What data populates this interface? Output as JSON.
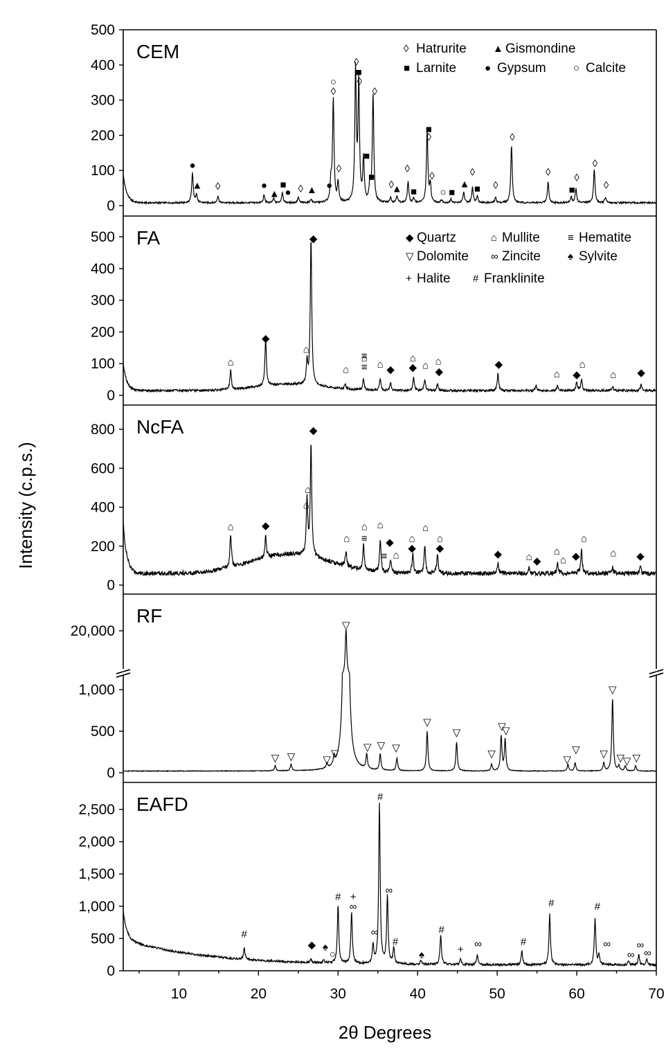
{
  "chart_data": {
    "type": "line",
    "x_axis": {
      "label": "2θ Degrees",
      "range": [
        3,
        70
      ],
      "ticks": [
        10,
        20,
        30,
        40,
        50,
        60,
        70
      ]
    },
    "y_axis_label": "Intensity (c.p.s.)",
    "panels": [
      {
        "name": "CEM",
        "y_range": [
          0,
          500
        ],
        "y_ticks": [
          "0",
          "100",
          "200",
          "300",
          "400",
          "500"
        ],
        "legend": [
          {
            "symbol": "◊",
            "name": "Hatrurite"
          },
          {
            "symbol": "▲",
            "name": "Gismondine"
          },
          {
            "symbol": "■",
            "name": "Larnite"
          },
          {
            "symbol": "●",
            "name": "Gypsum"
          },
          {
            "symbol": "○",
            "name": "Calcite"
          }
        ],
        "baseline": 8,
        "low_angle_rise": 80,
        "peaks": [
          [
            11.7,
            85
          ],
          [
            12.2,
            25
          ],
          [
            14.9,
            20
          ],
          [
            20.7,
            22
          ],
          [
            21.9,
            12
          ],
          [
            23.0,
            30
          ],
          [
            25.0,
            15
          ],
          [
            26.6,
            10
          ],
          [
            29.1,
            55
          ],
          [
            29.4,
            295
          ],
          [
            30.0,
            55
          ],
          [
            32.2,
            375
          ],
          [
            32.6,
            335
          ],
          [
            33.2,
            120
          ],
          [
            34.0,
            50
          ],
          [
            34.4,
            305
          ],
          [
            36.6,
            15
          ],
          [
            37.4,
            20
          ],
          [
            38.8,
            60
          ],
          [
            39.5,
            12
          ],
          [
            41.2,
            205
          ],
          [
            41.6,
            50
          ],
          [
            43.0,
            8
          ],
          [
            44.2,
            10
          ],
          [
            45.8,
            30
          ],
          [
            46.9,
            45
          ],
          [
            47.5,
            20
          ],
          [
            49.8,
            15
          ],
          [
            51.8,
            165
          ],
          [
            56.4,
            60
          ],
          [
            59.3,
            18
          ],
          [
            59.9,
            40
          ],
          [
            62.2,
            95
          ],
          [
            63.6,
            15
          ]
        ],
        "markers": [
          [
            11.7,
            115,
            "●"
          ],
          [
            12.3,
            58,
            "▲"
          ],
          [
            14.9,
            55,
            "◊"
          ],
          [
            20.7,
            58,
            "●"
          ],
          [
            22.0,
            34,
            "▲"
          ],
          [
            23.1,
            60,
            "■"
          ],
          [
            23.7,
            38,
            "●"
          ],
          [
            25.3,
            48,
            "◊"
          ],
          [
            26.7,
            45,
            "▲"
          ],
          [
            28.9,
            58,
            "●"
          ],
          [
            29.4,
            325,
            "◊"
          ],
          [
            29.4,
            352,
            "○"
          ],
          [
            30.1,
            105,
            "◊"
          ],
          [
            32.3,
            408,
            "◊"
          ],
          [
            32.6,
            380,
            "■"
          ],
          [
            32.7,
            353,
            "◊"
          ],
          [
            33.6,
            142,
            "■"
          ],
          [
            34.2,
            82,
            "■"
          ],
          [
            34.6,
            325,
            "◊"
          ],
          [
            36.7,
            60,
            "◊"
          ],
          [
            37.4,
            48,
            "▲"
          ],
          [
            38.7,
            105,
            "◊"
          ],
          [
            39.5,
            40,
            "■"
          ],
          [
            41.4,
            218,
            "■"
          ],
          [
            41.4,
            195,
            "◊"
          ],
          [
            41.8,
            85,
            "◊"
          ],
          [
            43.2,
            38,
            "○"
          ],
          [
            44.3,
            38,
            "■"
          ],
          [
            45.9,
            62,
            "▲"
          ],
          [
            46.9,
            95,
            "◊"
          ],
          [
            47.5,
            48,
            "■"
          ],
          [
            49.8,
            58,
            "◊"
          ],
          [
            51.9,
            195,
            "◊"
          ],
          [
            56.4,
            95,
            "◊"
          ],
          [
            59.4,
            45,
            "■"
          ],
          [
            60.0,
            80,
            "◊"
          ],
          [
            62.3,
            120,
            "◊"
          ],
          [
            63.7,
            58,
            "◊"
          ]
        ]
      },
      {
        "name": "FA",
        "y_range": [
          0,
          500
        ],
        "y_ticks": [
          "0",
          "100",
          "200",
          "300",
          "400",
          "500"
        ],
        "legend": [
          {
            "symbol": "◆",
            "name": "Quartz"
          },
          {
            "symbol": "⌂",
            "name": "Mullite"
          },
          {
            "symbol": "≡",
            "name": "Hematite"
          },
          {
            "symbol": "▽",
            "name": "Dolomite"
          },
          {
            "symbol": "∞",
            "name": "Zincite"
          },
          {
            "symbol": "♠",
            "name": "Sylvite"
          },
          {
            "symbol": "+",
            "name": "Halite"
          },
          {
            "symbol": "#",
            "name": "Franklinite"
          }
        ],
        "baseline": 15,
        "low_angle_rise": 85,
        "hump": {
          "center": 24,
          "width": 6,
          "height": 20
        },
        "peaks": [
          [
            16.5,
            60
          ],
          [
            20.9,
            150
          ],
          [
            26.1,
            70
          ],
          [
            26.6,
            465
          ],
          [
            30.9,
            15
          ],
          [
            33.2,
            35
          ],
          [
            35.3,
            35
          ],
          [
            36.6,
            25
          ],
          [
            39.5,
            40
          ],
          [
            40.9,
            35
          ],
          [
            42.5,
            20
          ],
          [
            50.1,
            55
          ],
          [
            54.9,
            15
          ],
          [
            57.6,
            15
          ],
          [
            60.0,
            28
          ],
          [
            60.6,
            35
          ],
          [
            64.5,
            12
          ],
          [
            68.1,
            20
          ]
        ],
        "markers": [
          [
            16.5,
            105,
            "⌂"
          ],
          [
            20.9,
            180,
            "◆"
          ],
          [
            26.0,
            145,
            "⌂"
          ],
          [
            26.9,
            495,
            "◆"
          ],
          [
            31.0,
            82,
            "⌂"
          ],
          [
            33.3,
            118,
            "⌂"
          ],
          [
            33.3,
            125,
            "≡"
          ],
          [
            33.3,
            90,
            "≡"
          ],
          [
            35.3,
            98,
            "⌂"
          ],
          [
            36.6,
            82,
            "◆"
          ],
          [
            39.4,
            88,
            "◆"
          ],
          [
            39.4,
            118,
            "⌂"
          ],
          [
            41.0,
            95,
            "⌂"
          ],
          [
            42.6,
            108,
            "⌂"
          ],
          [
            42.7,
            75,
            "◆"
          ],
          [
            50.2,
            98,
            "◆"
          ],
          [
            57.5,
            68,
            "⌂"
          ],
          [
            60.0,
            65,
            "◆"
          ],
          [
            60.7,
            98,
            "⌂"
          ],
          [
            64.6,
            65,
            "⌂"
          ],
          [
            68.1,
            72,
            "◆"
          ]
        ]
      },
      {
        "name": "NcFA",
        "y_range": [
          0,
          800
        ],
        "y_ticks": [
          "0",
          "200",
          "400",
          "600",
          "800"
        ],
        "baseline": 60,
        "low_angle_rise": 260,
        "hump": {
          "center": 24,
          "width": 7,
          "height": 100
        },
        "peaks": [
          [
            16.5,
            175
          ],
          [
            20.9,
            110
          ],
          [
            26.1,
            290
          ],
          [
            26.6,
            570
          ],
          [
            31.0,
            80
          ],
          [
            33.2,
            130
          ],
          [
            35.3,
            170
          ],
          [
            36.6,
            70
          ],
          [
            39.4,
            100
          ],
          [
            40.9,
            140
          ],
          [
            42.5,
            100
          ],
          [
            50.1,
            50
          ],
          [
            54.0,
            25
          ],
          [
            57.6,
            50
          ],
          [
            60.6,
            120
          ],
          [
            64.5,
            30
          ],
          [
            68.0,
            30
          ]
        ],
        "markers": [
          [
            16.5,
            300,
            "⌂"
          ],
          [
            20.9,
            305,
            "◆"
          ],
          [
            26.0,
            410,
            "⌂"
          ],
          [
            26.2,
            490,
            "⌂"
          ],
          [
            26.9,
            795,
            "◆"
          ],
          [
            31.1,
            240,
            "⌂"
          ],
          [
            33.3,
            300,
            "⌂"
          ],
          [
            33.3,
            240,
            "≡"
          ],
          [
            35.3,
            310,
            "⌂"
          ],
          [
            35.8,
            150,
            "≡"
          ],
          [
            36.5,
            220,
            "◆"
          ],
          [
            37.3,
            155,
            "⌂"
          ],
          [
            39.3,
            190,
            "◆"
          ],
          [
            39.3,
            240,
            "⌂"
          ],
          [
            41.0,
            295,
            "⌂"
          ],
          [
            42.8,
            190,
            "◆"
          ],
          [
            42.8,
            240,
            "⌂"
          ],
          [
            50.1,
            160,
            "◆"
          ],
          [
            54.0,
            145,
            "⌂"
          ],
          [
            55.0,
            125,
            "◆"
          ],
          [
            57.5,
            175,
            "⌂"
          ],
          [
            58.3,
            130,
            "⌂"
          ],
          [
            59.9,
            150,
            "◆"
          ],
          [
            60.9,
            240,
            "⌂"
          ],
          [
            64.6,
            165,
            "⌂"
          ],
          [
            68.0,
            150,
            "◆"
          ]
        ]
      },
      {
        "name": "RF",
        "y_range_lower": [
          0,
          1150
        ],
        "y_ticks_lower": [
          "0",
          "500",
          "1,000"
        ],
        "y_tick_upper": "20,000",
        "baseline": 20,
        "low_angle_rise": 0,
        "peaks": [
          [
            22.1,
            60
          ],
          [
            24.1,
            80
          ],
          [
            28.6,
            60
          ],
          [
            29.5,
            100
          ],
          [
            31.0,
            21000
          ],
          [
            33.6,
            180
          ],
          [
            35.3,
            200
          ],
          [
            37.4,
            150
          ],
          [
            41.2,
            480
          ],
          [
            44.9,
            350
          ],
          [
            49.3,
            80
          ],
          [
            50.5,
            420
          ],
          [
            51.0,
            380
          ],
          [
            58.9,
            80
          ],
          [
            59.8,
            100
          ],
          [
            63.4,
            100
          ],
          [
            64.5,
            880
          ],
          [
            65.3,
            60
          ],
          [
            66.1,
            60
          ],
          [
            67.4,
            60
          ]
        ],
        "markers": [
          [
            22.1,
            180,
            "▽"
          ],
          [
            24.1,
            195,
            "▽"
          ],
          [
            28.6,
            160,
            "▽"
          ],
          [
            29.6,
            235,
            "▽"
          ],
          [
            31.0,
            22400,
            "▽"
          ],
          [
            33.7,
            310,
            "▽"
          ],
          [
            35.4,
            330,
            "▽"
          ],
          [
            37.3,
            300,
            "▽"
          ],
          [
            41.2,
            610,
            "▽"
          ],
          [
            44.9,
            485,
            "▽"
          ],
          [
            49.3,
            230,
            "▽"
          ],
          [
            50.6,
            560,
            "▽"
          ],
          [
            51.1,
            510,
            "▽"
          ],
          [
            58.8,
            160,
            "▽"
          ],
          [
            59.9,
            280,
            "▽"
          ],
          [
            63.4,
            230,
            "▽"
          ],
          [
            64.5,
            1000,
            "▽"
          ],
          [
            65.5,
            180,
            "▽"
          ],
          [
            66.3,
            140,
            "▽"
          ],
          [
            67.5,
            180,
            "▽"
          ]
        ]
      },
      {
        "name": "EAFD",
        "y_range": [
          0,
          2800
        ],
        "y_ticks": [
          "0",
          "500",
          "1,000",
          "1,500",
          "2,000",
          "2,500"
        ],
        "baseline": 90,
        "low_angle_rise": 440,
        "decay": {
          "amplitude": 400,
          "scale": 10
        },
        "peaks": [
          [
            18.2,
            180
          ],
          [
            26.6,
            50
          ],
          [
            28.2,
            40
          ],
          [
            30.0,
            900
          ],
          [
            31.7,
            800
          ],
          [
            34.4,
            300
          ],
          [
            35.2,
            2500
          ],
          [
            36.2,
            1050
          ],
          [
            37.0,
            250
          ],
          [
            40.4,
            60
          ],
          [
            42.9,
            450
          ],
          [
            45.4,
            80
          ],
          [
            47.5,
            150
          ],
          [
            53.1,
            220
          ],
          [
            56.6,
            780
          ],
          [
            62.3,
            720
          ],
          [
            62.8,
            150
          ],
          [
            66.5,
            70
          ],
          [
            67.8,
            150
          ],
          [
            68.8,
            90
          ]
        ],
        "markers": [
          [
            18.2,
            570,
            "#"
          ],
          [
            26.7,
            400,
            "◆"
          ],
          [
            28.4,
            370,
            "♠"
          ],
          [
            29.3,
            260,
            "○"
          ],
          [
            30.0,
            1150,
            "#"
          ],
          [
            31.9,
            1150,
            "+"
          ],
          [
            31.9,
            1000,
            "∞"
          ],
          [
            34.6,
            600,
            "∞"
          ],
          [
            35.3,
            2700,
            "#"
          ],
          [
            36.4,
            1250,
            "∞"
          ],
          [
            37.2,
            450,
            "#"
          ],
          [
            40.5,
            250,
            "♠"
          ],
          [
            43.0,
            640,
            "#"
          ],
          [
            45.4,
            330,
            "+"
          ],
          [
            47.6,
            420,
            "∞"
          ],
          [
            53.3,
            450,
            "#"
          ],
          [
            56.8,
            1050,
            "#"
          ],
          [
            62.6,
            1000,
            "#"
          ],
          [
            63.8,
            420,
            "∞"
          ],
          [
            66.8,
            250,
            "∞"
          ],
          [
            68.0,
            400,
            "∞"
          ],
          [
            68.9,
            280,
            "∞"
          ]
        ]
      }
    ]
  }
}
